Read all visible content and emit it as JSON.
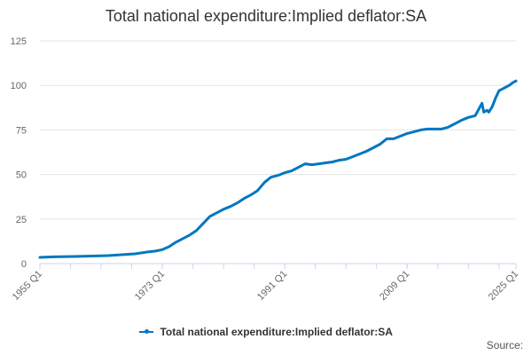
{
  "chart_data": {
    "type": "line",
    "title": "Total national expenditure:Implied deflator:SA",
    "xlabel": "",
    "ylabel": "",
    "ylim": [
      0,
      125
    ],
    "yticks": [
      0,
      25,
      50,
      75,
      100,
      125
    ],
    "x_range": [
      1955,
      2025
    ],
    "xtick_labels": [
      "1955 Q1",
      "1973 Q1",
      "1991 Q1",
      "2009 Q1",
      "2025 Q1"
    ],
    "grid": true,
    "legend_position": "bottom",
    "color": "#0077c0",
    "series": [
      {
        "name": "Total national expenditure:Implied deflator:SA",
        "x": [
          1955,
          1957,
          1960,
          1962,
          1965,
          1967,
          1969,
          1971,
          1972,
          1973,
          1974,
          1975,
          1976,
          1977,
          1978,
          1979,
          1980,
          1981,
          1982,
          1983,
          1984,
          1985,
          1986,
          1987,
          1988,
          1989,
          1990,
          1991,
          1992,
          1993,
          1994,
          1995,
          1996,
          1997,
          1998,
          1999,
          2000,
          2001,
          2002,
          2003,
          2004,
          2005,
          2006,
          2007,
          2008,
          2009,
          2010,
          2011,
          2012,
          2013,
          2014,
          2015,
          2016,
          2017,
          2018,
          2019,
          2020,
          2020.25,
          2020.5,
          2020.75,
          2021,
          2021.5,
          2022,
          2022.5,
          2023,
          2023.5,
          2024,
          2024.5,
          2025
        ],
        "values": [
          3.5,
          3.8,
          4.0,
          4.2,
          4.5,
          5.0,
          5.5,
          6.6,
          7.0,
          7.8,
          9.5,
          12.0,
          14.0,
          16.0,
          18.5,
          22.5,
          26.5,
          28.5,
          30.5,
          32.0,
          34.0,
          36.5,
          38.5,
          41.0,
          45.5,
          48.5,
          49.5,
          51.0,
          52.0,
          54.0,
          56.0,
          55.5,
          56.0,
          56.5,
          57.0,
          58.0,
          58.5,
          60.0,
          61.5,
          63.0,
          65.0,
          67.0,
          70.0,
          70.0,
          71.5,
          73.0,
          74.0,
          75.0,
          75.5,
          75.5,
          75.5,
          76.5,
          78.5,
          80.5,
          82.0,
          83.0,
          90.0,
          85.0,
          85.5,
          86.0,
          85.0,
          88.0,
          93.0,
          97.0,
          98.0,
          99.0,
          100.0,
          101.5,
          102.5
        ]
      }
    ]
  },
  "source_label": "Source:"
}
